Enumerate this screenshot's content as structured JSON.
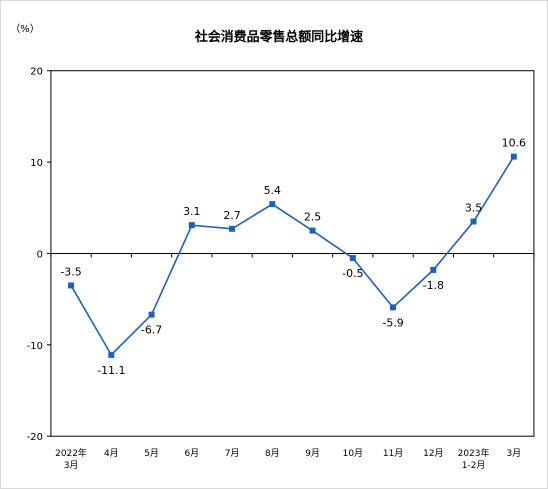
{
  "chart_data": {
    "type": "line",
    "title": "社会消费品零售总额同比增速",
    "unit_label": "（%）",
    "categories": [
      {
        "line1": "2022年",
        "line2": "3月"
      },
      {
        "line1": "4月",
        "line2": ""
      },
      {
        "line1": "5月",
        "line2": ""
      },
      {
        "line1": "6月",
        "line2": ""
      },
      {
        "line1": "7月",
        "line2": ""
      },
      {
        "line1": "8月",
        "line2": ""
      },
      {
        "line1": "9月",
        "line2": ""
      },
      {
        "line1": "10月",
        "line2": ""
      },
      {
        "line1": "11月",
        "line2": ""
      },
      {
        "line1": "12月",
        "line2": ""
      },
      {
        "line1": "2023年",
        "line2": "1-2月"
      },
      {
        "line1": "3月",
        "line2": ""
      }
    ],
    "values": [
      -3.5,
      -11.1,
      -6.7,
      3.1,
      2.7,
      5.4,
      2.5,
      -0.5,
      -5.9,
      -1.8,
      3.5,
      10.6
    ],
    "data_labels": [
      "-3.5",
      "-11.1",
      "-6.7",
      "3.1",
      "2.7",
      "5.4",
      "2.5",
      "-0.5",
      "-5.9",
      "-1.8",
      "3.5",
      "10.6"
    ],
    "label_positions": [
      "above",
      "below",
      "below",
      "above",
      "above",
      "above",
      "above",
      "below",
      "below",
      "below",
      "above",
      "above"
    ],
    "yticks": [
      20,
      10,
      0,
      -10,
      -20
    ],
    "ylim": [
      -20,
      20
    ],
    "line_color": "#1f5fbf",
    "grid": false,
    "legend": false
  }
}
